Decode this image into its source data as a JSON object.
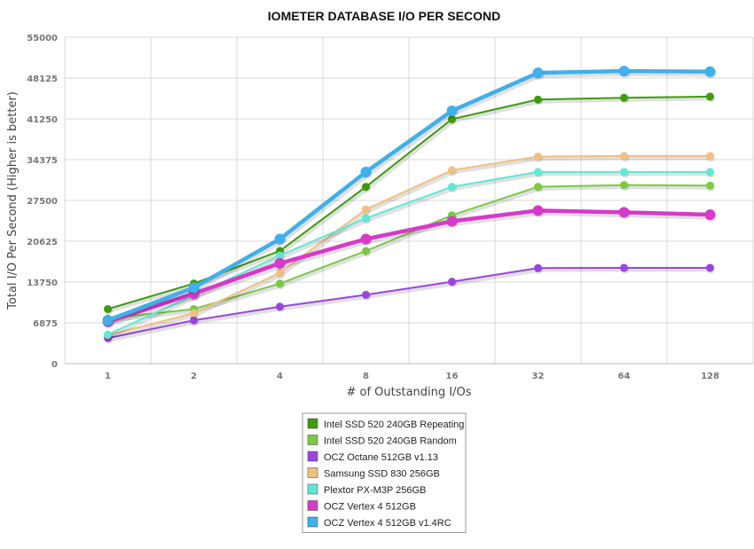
{
  "chart_data": {
    "type": "line",
    "title": "IOMETER DATABASE I/O PER SECOND",
    "xlabel": "# of Outstanding I/Os",
    "ylabel": "Total I/O Per Second (Higher is better)",
    "categories": [
      "1",
      "2",
      "4",
      "8",
      "16",
      "32",
      "64",
      "128"
    ],
    "yticks": [
      "0",
      "6875",
      "13750",
      "20625",
      "27500",
      "34375",
      "41250",
      "48125",
      "55000"
    ],
    "ylim": [
      0,
      55000
    ],
    "grid": true,
    "legend_position": "bottom-center",
    "series": [
      {
        "name": "Intel SSD 520 240GB Repeating",
        "color": "#3f9a0c",
        "values": [
          9200,
          13500,
          19000,
          29800,
          41200,
          44500,
          44800,
          45000
        ]
      },
      {
        "name": "Intel SSD 520 240GB Random",
        "color": "#7ac943",
        "values": [
          7600,
          9200,
          13500,
          19000,
          25000,
          29800,
          30100,
          30000
        ]
      },
      {
        "name": "OCZ Octane 512GB v1.13",
        "color": "#9a45e0",
        "values": [
          4300,
          7300,
          9600,
          11600,
          13800,
          16100,
          16150,
          16150
        ]
      },
      {
        "name": "Samsung SSD 830 256GB",
        "color": "#f0c080",
        "values": [
          4800,
          8500,
          15300,
          26000,
          32600,
          34900,
          35000,
          35000
        ]
      },
      {
        "name": "Plextor PX-M3P 256GB",
        "color": "#5ee8d6",
        "values": [
          4900,
          11500,
          18200,
          24500,
          29800,
          32300,
          32300,
          32300
        ]
      },
      {
        "name": "OCZ Vertex 4 512GB",
        "color": "#d63ac9",
        "values": [
          7100,
          11800,
          16900,
          21000,
          24000,
          25800,
          25500,
          25100
        ]
      },
      {
        "name": "OCZ Vertex 4 512GB v1.4RC",
        "color": "#3fb0ec",
        "values": [
          7300,
          12800,
          21000,
          32300,
          42600,
          49000,
          49300,
          49200
        ]
      }
    ]
  }
}
